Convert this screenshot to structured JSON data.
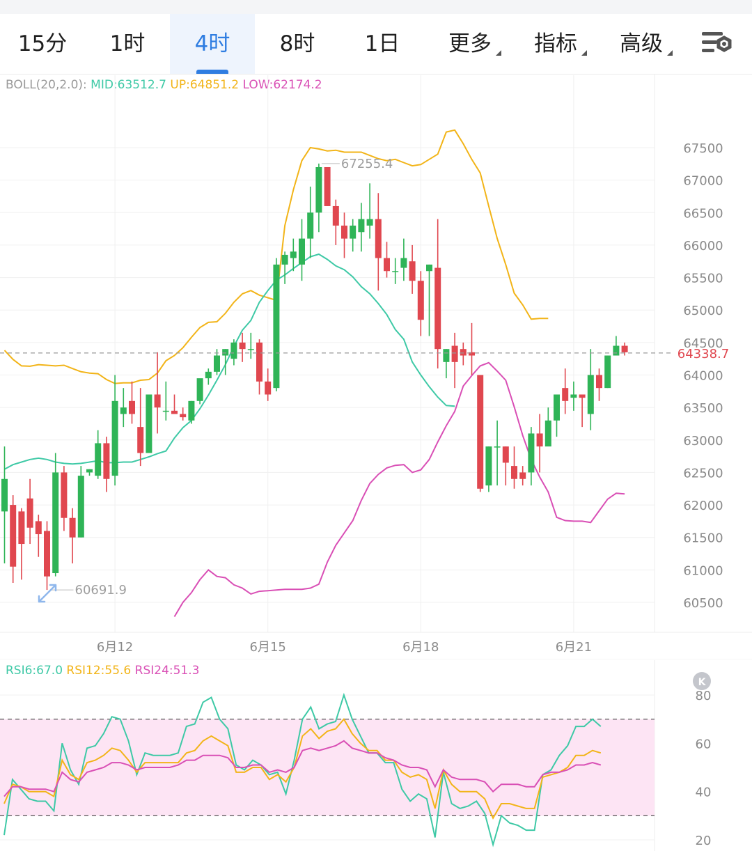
{
  "tabs": [
    {
      "label": "15分",
      "active": false,
      "dropdown": false
    },
    {
      "label": "1时",
      "active": false,
      "dropdown": false
    },
    {
      "label": "4时",
      "active": true,
      "dropdown": false
    },
    {
      "label": "8时",
      "active": false,
      "dropdown": false
    },
    {
      "label": "1日",
      "active": false,
      "dropdown": false
    },
    {
      "label": "更多",
      "active": false,
      "dropdown": true
    },
    {
      "label": "指标",
      "active": false,
      "dropdown": true
    },
    {
      "label": "高级",
      "active": false,
      "dropdown": true
    }
  ],
  "settings_icon": "chart-settings-icon",
  "colors": {
    "up": "#2fb457",
    "down": "#e0474f",
    "mid": "#3ec9a6",
    "upper": "#f2b418",
    "lower": "#d94fb5",
    "accent": "#2f7de1",
    "current": "#e0474f"
  },
  "chart_data": [
    {
      "type": "candlestick",
      "indicator_label": {
        "name": "BOLL(20,2.0):",
        "mid": "MID:63512.7",
        "up": "UP:64851.2",
        "low": "LOW:62174.2"
      },
      "ylim": [
        60200,
        68100
      ],
      "y_ticks": [
        60500,
        61000,
        61500,
        62000,
        62500,
        63000,
        63500,
        64000,
        64500,
        65000,
        65500,
        66000,
        66500,
        67000,
        67500
      ],
      "x_ticks": [
        {
          "index": 13,
          "label": "6月12"
        },
        {
          "index": 31,
          "label": "6月15"
        },
        {
          "index": 49,
          "label": "6月18"
        },
        {
          "index": 67,
          "label": "6月21"
        }
      ],
      "current_price": 64338.7,
      "current_price_label": "64338.7",
      "max_annotation": {
        "index": 37,
        "value": 67255.4,
        "label": "67255.4"
      },
      "min_annotation": {
        "index": 5,
        "value": 60691.9,
        "label": "60691.9"
      },
      "candles": [
        [
          61900,
          62900,
          62400,
          61100
        ],
        [
          62000,
          62150,
          61050,
          60800
        ],
        [
          61900,
          61950,
          61400,
          60850
        ],
        [
          62100,
          62400,
          61650,
          61400
        ],
        [
          61750,
          61850,
          61550,
          61200
        ],
        [
          61600,
          61750,
          60900,
          60692
        ],
        [
          60950,
          62800,
          62500,
          60900
        ],
        [
          62500,
          62600,
          61800,
          61600
        ],
        [
          61800,
          61950,
          61500,
          61100
        ],
        [
          61500,
          62600,
          62450,
          61500
        ],
        [
          62500,
          62550,
          62550,
          62450
        ],
        [
          62450,
          63150,
          62950,
          62400
        ],
        [
          62950,
          63050,
          62400,
          62200
        ],
        [
          62450,
          64000,
          63600,
          62300
        ],
        [
          63400,
          63800,
          63500,
          63200
        ],
        [
          63600,
          63900,
          63400,
          63250
        ],
        [
          63200,
          63800,
          62800,
          62600
        ],
        [
          62800,
          63700,
          63700,
          62900
        ],
        [
          63700,
          64350,
          63500,
          63100
        ],
        [
          63450,
          63900,
          63450,
          63300
        ],
        [
          63450,
          63700,
          63400,
          63400
        ],
        [
          63400,
          63500,
          63350,
          63300
        ],
        [
          63300,
          63600,
          63600,
          63250
        ],
        [
          63600,
          63900,
          63950,
          63550
        ],
        [
          63950,
          64100,
          64050,
          63850
        ],
        [
          64050,
          64400,
          64300,
          64000
        ],
        [
          64300,
          64400,
          64400,
          64000
        ],
        [
          64250,
          64550,
          64500,
          64150
        ],
        [
          64500,
          64650,
          64400,
          64200
        ],
        [
          64400,
          64650,
          64400,
          64250
        ],
        [
          64500,
          64550,
          63900,
          63700
        ],
        [
          63900,
          64100,
          63700,
          63600
        ],
        [
          63800,
          65800,
          65700,
          63750
        ],
        [
          65700,
          65900,
          65850,
          65400
        ],
        [
          65800,
          66100,
          65900,
          65600
        ],
        [
          65700,
          66400,
          66100,
          65450
        ],
        [
          66100,
          66900,
          66500,
          65800
        ],
        [
          66500,
          67255,
          67200,
          66200
        ],
        [
          67200,
          67200,
          66600,
          66600
        ],
        [
          66600,
          66700,
          66300,
          66000
        ],
        [
          66300,
          66500,
          66100,
          65800
        ],
        [
          66100,
          66400,
          66300,
          65900
        ],
        [
          66200,
          66650,
          66400,
          65900
        ],
        [
          66300,
          66950,
          66400,
          66100
        ],
        [
          66400,
          66800,
          65800,
          65300
        ],
        [
          65800,
          66050,
          65600,
          65500
        ],
        [
          65600,
          65800,
          65600,
          65400
        ],
        [
          65650,
          66100,
          65800,
          65450
        ],
        [
          65750,
          66000,
          65450,
          65250
        ],
        [
          65450,
          65600,
          64850,
          64600
        ],
        [
          65600,
          65700,
          65700,
          64600
        ],
        [
          65650,
          66400,
          64400,
          64100
        ],
        [
          64200,
          64400,
          64400,
          63950
        ],
        [
          64450,
          64650,
          64200,
          63800
        ],
        [
          64400,
          64500,
          64300,
          64150
        ],
        [
          64350,
          64800,
          64300,
          64000
        ],
        [
          64000,
          64000,
          62250,
          62200
        ],
        [
          62300,
          62900,
          62900,
          62200
        ],
        [
          62900,
          63300,
          62900,
          62300
        ],
        [
          62900,
          62900,
          62650,
          62300
        ],
        [
          62600,
          62900,
          62400,
          62250
        ],
        [
          62500,
          62600,
          62400,
          62300
        ],
        [
          62500,
          63200,
          63100,
          62300
        ],
        [
          63100,
          63400,
          62900,
          62500
        ],
        [
          62900,
          63500,
          63300,
          62950
        ],
        [
          63300,
          63650,
          63700,
          63050
        ],
        [
          63800,
          64100,
          63600,
          63400
        ],
        [
          63650,
          63900,
          63700,
          63450
        ],
        [
          63700,
          63700,
          63650,
          63200
        ],
        [
          63400,
          64400,
          64000,
          63150
        ],
        [
          64000,
          64100,
          63800,
          63600
        ],
        [
          63800,
          64300,
          64300,
          63800
        ],
        [
          64300,
          64600,
          64450,
          64300
        ],
        [
          64450,
          64500,
          64350,
          64300
        ]
      ],
      "series": [
        {
          "name": "UP",
          "values": [
            64380,
            64240,
            64140,
            64135,
            64160,
            64150,
            64140,
            64150,
            64100,
            64050,
            64030,
            64020,
            63930,
            63870,
            63880,
            63880,
            63920,
            63930,
            64030,
            64220,
            64300,
            64420,
            64580,
            64730,
            64810,
            64820,
            64950,
            65120,
            65250,
            65300,
            65230,
            65190,
            65150,
            66300,
            66850,
            67300,
            67500,
            67480,
            67450,
            67460,
            67430,
            67430,
            67430,
            67380,
            67330,
            67300,
            67320,
            67270,
            67220,
            67240,
            67320,
            67400,
            67740,
            67770,
            67560,
            67320,
            67110,
            66600,
            66100,
            65700,
            65260,
            65080,
            64860,
            64870,
            64870
          ]
        },
        {
          "name": "MID",
          "values": [
            62550,
            62620,
            62660,
            62700,
            62720,
            62700,
            62660,
            62640,
            62630,
            62640,
            62660,
            62680,
            62650,
            62650,
            62660,
            62660,
            62700,
            62740,
            62790,
            62830,
            63030,
            63190,
            63300,
            63480,
            63690,
            63920,
            64160,
            64440,
            64690,
            64840,
            65120,
            65300,
            65460,
            65540,
            65640,
            65730,
            65820,
            65860,
            65780,
            65680,
            65620,
            65510,
            65360,
            65250,
            65100,
            64930,
            64700,
            64550,
            64200,
            64000,
            63820,
            63660,
            63530,
            63520
          ]
        },
        {
          "name": "LOW",
          "values": [
            60280,
            60500,
            60650,
            60850,
            61000,
            60900,
            60880,
            60770,
            60720,
            60630,
            60670,
            60680,
            60690,
            60700,
            60700,
            60700,
            60720,
            60780,
            61120,
            61380,
            61570,
            61760,
            62070,
            62330,
            62470,
            62570,
            62610,
            62620,
            62500,
            62540,
            62700,
            62970,
            63220,
            63440,
            63830,
            63990,
            64140,
            64190,
            64060,
            63920,
            63510,
            63070,
            62700,
            62430,
            62200,
            61810,
            61760,
            61750,
            61750,
            61730,
            61910,
            62090,
            62180,
            62170
          ]
        }
      ],
      "series_start_index": [
        0,
        0,
        20
      ]
    },
    {
      "type": "line",
      "legend": [
        {
          "name": "RSI6",
          "label": "RSI6:67.0"
        },
        {
          "name": "RSI12",
          "label": "RSI12:55.6"
        },
        {
          "name": "RSI24",
          "label": "RSI24:51.3"
        }
      ],
      "ylim": [
        17,
        86
      ],
      "y_ticks": [
        20,
        40,
        60,
        80
      ],
      "reference_lines": [
        30,
        70
      ],
      "series": [
        {
          "name": "RSI6",
          "values": [
            22,
            45,
            41,
            37,
            36,
            36,
            32,
            60,
            49,
            43,
            58,
            59,
            64,
            71,
            70,
            61,
            47,
            56,
            55,
            55,
            55,
            56,
            67,
            68,
            77,
            79,
            70,
            66,
            51,
            49,
            53,
            51,
            47,
            48,
            39,
            53,
            70,
            75,
            66,
            68,
            69,
            80,
            70,
            63,
            56,
            56,
            52,
            52,
            41,
            36,
            39,
            37,
            21,
            48,
            35,
            33,
            34,
            36,
            31,
            18,
            30,
            27,
            26,
            24,
            24,
            47,
            49,
            55,
            59,
            67,
            67,
            70,
            67
          ]
        },
        {
          "name": "RSI12",
          "values": [
            35,
            43,
            42,
            40,
            40,
            40,
            38,
            53,
            47,
            45,
            52,
            53,
            55,
            58,
            57,
            53,
            48,
            52,
            52,
            52,
            52,
            52,
            56,
            57,
            61,
            63,
            61,
            59,
            48,
            48,
            50,
            50,
            45,
            47,
            44,
            50,
            63,
            66,
            62,
            65,
            66,
            70,
            64,
            60,
            57,
            57,
            53,
            53,
            48,
            46,
            47,
            45,
            33,
            49,
            43,
            40,
            40,
            40,
            37,
            29,
            35,
            35,
            34,
            33,
            33,
            46,
            47,
            48,
            50,
            55,
            55,
            57,
            56
          ]
        },
        {
          "name": "RSI24",
          "values": [
            38,
            42,
            42,
            41,
            41,
            41,
            40,
            48,
            45,
            44,
            48,
            49,
            50,
            52,
            52,
            51,
            49,
            50,
            50,
            50,
            50,
            51,
            53,
            53,
            55,
            55,
            55,
            54,
            50,
            50,
            51,
            51,
            48,
            49,
            48,
            50,
            57,
            58,
            57,
            58,
            59,
            61,
            58,
            57,
            56,
            56,
            54,
            53,
            51,
            50,
            50,
            49,
            42,
            49,
            46,
            45,
            45,
            45,
            44,
            40,
            43,
            43,
            43,
            42,
            42,
            47,
            48,
            48,
            49,
            51,
            51,
            52,
            51
          ]
        }
      ]
    }
  ]
}
